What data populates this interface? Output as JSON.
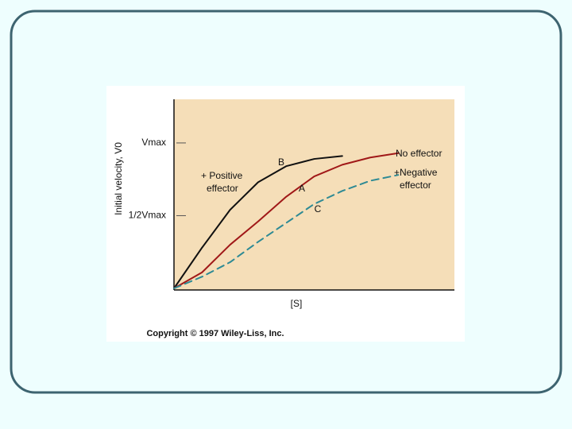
{
  "chart_data": {
    "type": "line",
    "ylabel": "Initial velocity, V0",
    "xlabel": "[S]",
    "footer": "Copyright © 1997 Wiley-Liss, Inc.",
    "x": [
      0,
      0.1,
      0.2,
      0.3,
      0.4,
      0.5,
      0.6,
      0.7,
      0.8
    ],
    "xlim": [
      0,
      1
    ],
    "ylim": [
      0,
      1.3
    ],
    "yticks": [
      {
        "value": 1,
        "label": "Vmax"
      },
      {
        "value": 0.5,
        "label": "1/2Vmax"
      }
    ],
    "series": [
      {
        "name": "+ Positive effector",
        "color": "#111111",
        "style": "solid",
        "values": [
          0,
          0.28,
          0.54,
          0.73,
          0.84,
          0.89,
          0.91,
          null,
          null
        ]
      },
      {
        "name": "No effector",
        "color": "#a01818",
        "style": "solid",
        "values": [
          0,
          0.11,
          0.3,
          0.46,
          0.63,
          0.77,
          0.85,
          0.9,
          0.93
        ]
      },
      {
        "name": "+Negative effector",
        "color": "#2e8a94",
        "style": "dashed",
        "values": [
          0,
          0.08,
          0.18,
          0.32,
          0.45,
          0.58,
          0.67,
          0.74,
          0.78
        ]
      }
    ],
    "annotations": [
      "B",
      "A",
      "C"
    ]
  }
}
